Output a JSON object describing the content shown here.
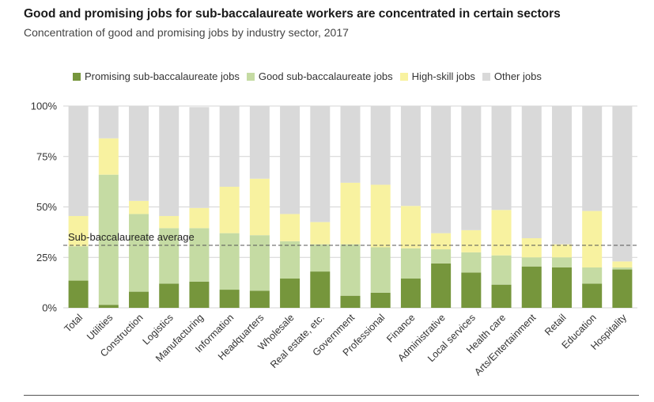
{
  "chart_data": {
    "type": "bar",
    "stacked": true,
    "title": "Good and promising jobs for sub-baccalaureate workers are concentrated in certain sectors",
    "subtitle": "Concentration of good and promising jobs by industry sector, 2017",
    "ylim": [
      0,
      100
    ],
    "yticks": [
      0,
      25,
      50,
      75,
      100
    ],
    "ytick_labels": [
      "0%",
      "25%",
      "50%",
      "75%",
      "100%"
    ],
    "legend_position": "top",
    "categories": [
      "Total",
      "Utilities",
      "Construction",
      "Logistics",
      "Manufacturing",
      "Information",
      "Headquarters",
      "Wholesale",
      "Real estate, etc.",
      "Government",
      "Professional",
      "Finance",
      "Administrative",
      "Local services",
      "Health care",
      "Arts/Entertainment",
      "Retail",
      "Education",
      "Hospitality"
    ],
    "series": [
      {
        "name": "Promising sub-baccalaureate jobs",
        "color": "#76963c",
        "values": [
          13.5,
          1.5,
          8,
          12,
          13,
          9,
          8.5,
          14.5,
          18,
          6,
          7.5,
          14.5,
          22,
          17.5,
          11.5,
          20.5,
          20,
          12,
          19
        ]
      },
      {
        "name": "Good sub-baccalaureate jobs",
        "color": "#c5dba3",
        "values": [
          17,
          64.5,
          38.5,
          27.5,
          26.5,
          28,
          27.5,
          18.5,
          13.5,
          25.5,
          22.5,
          15,
          7,
          10,
          14.5,
          4.5,
          5,
          8,
          1
        ]
      },
      {
        "name": "High-skill jobs",
        "color": "#f8f2a0",
        "values": [
          15,
          18,
          6.5,
          6,
          10,
          23,
          28,
          13.5,
          11,
          30.5,
          31,
          21,
          8,
          11,
          22.5,
          9.5,
          6.5,
          28,
          3
        ]
      },
      {
        "name": "Other jobs",
        "color": "#d9d9d9",
        "values": [
          54.5,
          16,
          47,
          54.5,
          50,
          40,
          36,
          53.5,
          57.5,
          38,
          39,
          49.5,
          63,
          61.5,
          51.5,
          65.5,
          68.5,
          52,
          77
        ]
      }
    ],
    "reference_line": {
      "label": "Sub-baccalaureate average",
      "value": 31
    }
  }
}
